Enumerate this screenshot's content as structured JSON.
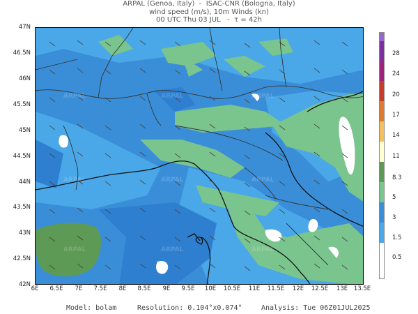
{
  "header": {
    "line1": "ARPAL (Genoa, Italy)  -  ISAC-CNR (Bologna, Italy)",
    "line2": "wind speed (m/s), 10m Winds (kn)",
    "line3": "00 UTC Thu 03 JUL   -  τ = 42h"
  },
  "map": {
    "lat_labels": [
      "47N",
      "46.5N",
      "46N",
      "45.5N",
      "45N",
      "44.5N",
      "44N",
      "43.5N",
      "43N",
      "42.5N",
      "42N"
    ],
    "lon_labels": [
      "6E",
      "6.5E",
      "7E",
      "7.5E",
      "8E",
      "8.5E",
      "9E",
      "9.5E",
      "10E",
      "10.5E",
      "11E",
      "11.5E",
      "12E",
      "12.5E",
      "13E",
      "13.5E"
    ],
    "watermark": "ARPAL",
    "colors": {
      "sea_base": "#3a8ed8",
      "band_1_5_3": "#4aa8e8",
      "band_3_5": "#2f7fd0",
      "band_5_8_3": "#7ac48e",
      "band_8_3_11": "#5d9a55",
      "calm": "#ffffff",
      "coastline": "#111111",
      "borders": "#333333"
    }
  },
  "colorbar": {
    "labels": [
      "28",
      "24",
      "20",
      "17",
      "14",
      "11",
      "8.3",
      "5",
      "3",
      "1.5",
      "0.5"
    ],
    "colors": [
      "#9966cc",
      "#7b2fa0",
      "#a0227a",
      "#c83a2a",
      "#e07a30",
      "#f3c060",
      "#ffffd0",
      "#5d9a55",
      "#7ac48e",
      "#3a8ed8",
      "#4aa8e8",
      "#ffffff"
    ]
  },
  "footer": {
    "model": "Model: bolam",
    "resolution": "Resolution: 0.104°x0.074°",
    "analysis": "Analysis: Tue 06Z01JUL2025"
  }
}
